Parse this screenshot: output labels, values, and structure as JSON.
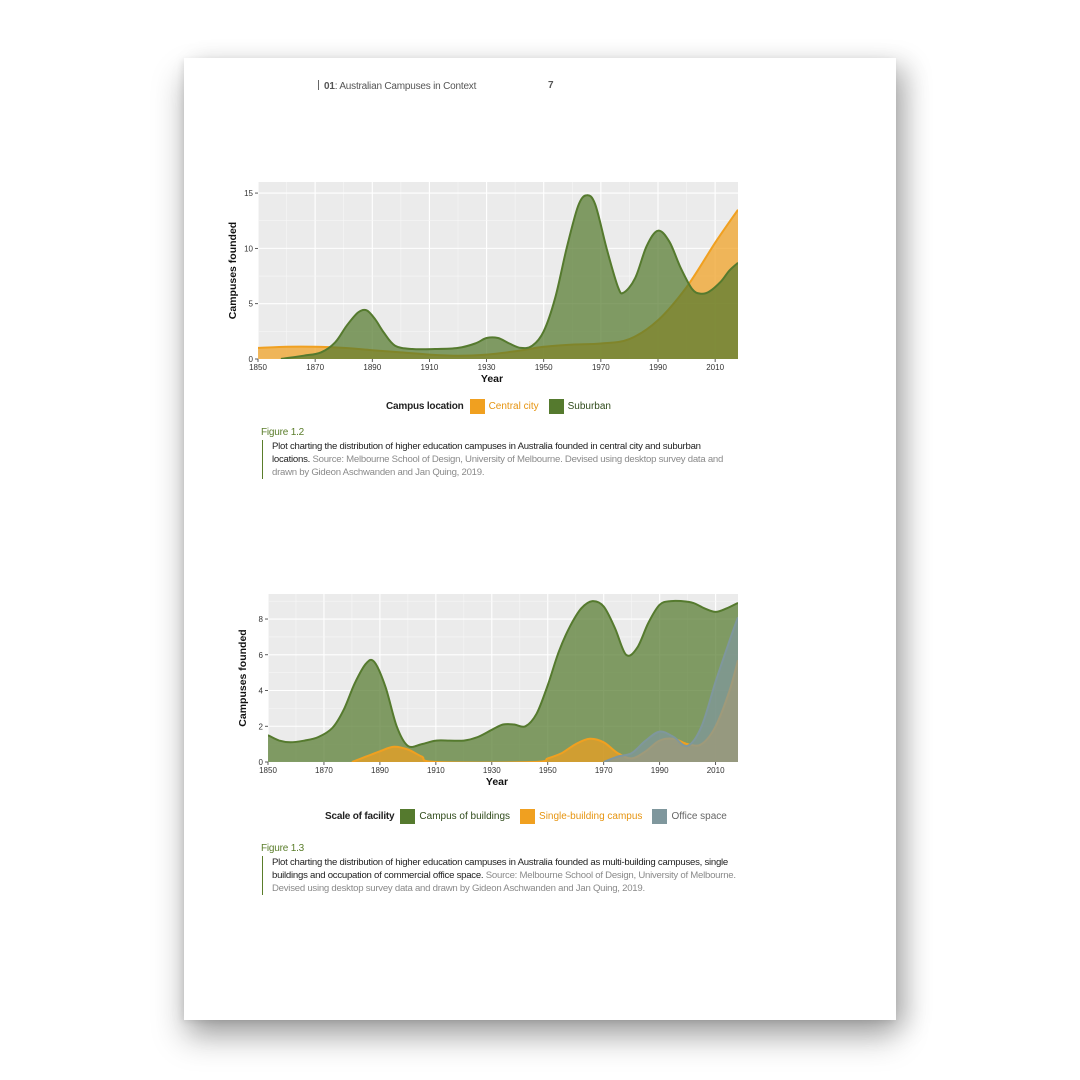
{
  "header": {
    "section_number": "01",
    "section_title": ": Australian Campuses in Context",
    "page_number": "7"
  },
  "figures": [
    {
      "label": "Figure 1.2",
      "caption": "Plot charting the distribution of higher education campuses in Australia founded in central city and suburban locations.",
      "source": "Source: Melbourne School of Design, University of Melbourne. Devised using desktop survey data and drawn by Gideon Aschwanden and Jan Quing, 2019.",
      "legend_title": "Campus location"
    },
    {
      "label": "Figure 1.3",
      "caption": "Plot charting the distribution of higher education campuses in Australia founded as multi-building campuses, single buildings and occupation of commercial office space.",
      "source": "Source: Melbourne School of Design, University of Melbourne. Devised using desktop survey data and drawn by Gideon Aschwanden and Jan Quing, 2019.",
      "legend_title": "Scale of facility"
    }
  ],
  "chart_data": [
    {
      "type": "area",
      "title": "",
      "xlabel": "Year",
      "ylabel": "Campuses founded",
      "xlim": [
        1850,
        2018
      ],
      "ylim": [
        0,
        16
      ],
      "xticks": [
        1850,
        1870,
        1890,
        1910,
        1930,
        1950,
        1970,
        1990,
        2010
      ],
      "yticks": [
        0,
        5,
        10,
        15
      ],
      "grid": true,
      "legend_position": "bottom",
      "series": [
        {
          "name": "Central city",
          "color": "#f0a020",
          "x": [
            1850,
            1860,
            1870,
            1880,
            1890,
            1900,
            1910,
            1920,
            1930,
            1940,
            1950,
            1960,
            1970,
            1980,
            1990,
            2000,
            2010,
            2018
          ],
          "y": [
            1.0,
            1.1,
            1.1,
            1.0,
            0.8,
            0.6,
            0.4,
            0.3,
            0.4,
            0.7,
            1.1,
            1.3,
            1.4,
            1.8,
            3.5,
            6.5,
            10.5,
            13.5
          ]
        },
        {
          "name": "Suburban",
          "color": "#557a2e",
          "x": [
            1858,
            1866,
            1872,
            1877,
            1881,
            1885,
            1888,
            1891,
            1894,
            1898,
            1904,
            1912,
            1920,
            1926,
            1930,
            1934,
            1938,
            1942,
            1946,
            1950,
            1954,
            1958,
            1962,
            1965,
            1968,
            1972,
            1976,
            1978,
            1982,
            1986,
            1990,
            1994,
            1998,
            2002,
            2005,
            2008,
            2012,
            2015,
            2018
          ],
          "y": [
            0.0,
            0.3,
            0.6,
            1.5,
            3.0,
            4.2,
            4.4,
            3.6,
            2.4,
            1.2,
            0.9,
            0.9,
            1.0,
            1.4,
            1.9,
            1.9,
            1.4,
            1.0,
            1.2,
            2.5,
            5.5,
            10.0,
            13.8,
            14.8,
            14.0,
            10.0,
            6.5,
            6.0,
            7.3,
            10.2,
            11.6,
            10.6,
            8.2,
            6.3,
            5.9,
            6.1,
            7.0,
            8.0,
            8.7
          ]
        }
      ]
    },
    {
      "type": "area",
      "title": "",
      "xlabel": "Year",
      "ylabel": "Campuses founded",
      "xlim": [
        1850,
        2018
      ],
      "ylim": [
        0,
        9.4
      ],
      "xticks": [
        1850,
        1870,
        1890,
        1910,
        1930,
        1950,
        1970,
        1990,
        2010
      ],
      "yticks": [
        0,
        2,
        4,
        6,
        8
      ],
      "grid": true,
      "legend_position": "bottom",
      "series": [
        {
          "name": "Campus of buildings",
          "color": "#557a2e",
          "x": [
            1850,
            1854,
            1858,
            1863,
            1868,
            1873,
            1877,
            1881,
            1885,
            1888,
            1892,
            1896,
            1900,
            1905,
            1910,
            1915,
            1920,
            1925,
            1930,
            1934,
            1938,
            1942,
            1946,
            1950,
            1954,
            1958,
            1962,
            1966,
            1970,
            1974,
            1978,
            1982,
            1986,
            1990,
            1994,
            1998,
            2002,
            2006,
            2010,
            2014,
            2018
          ],
          "y": [
            1.5,
            1.2,
            1.1,
            1.2,
            1.4,
            1.9,
            2.9,
            4.4,
            5.5,
            5.6,
            4.2,
            2.0,
            0.9,
            1.0,
            1.2,
            1.2,
            1.2,
            1.4,
            1.8,
            2.1,
            2.1,
            2.0,
            2.7,
            4.3,
            6.2,
            7.6,
            8.6,
            9.0,
            8.7,
            7.5,
            6.0,
            6.4,
            7.8,
            8.8,
            9.0,
            9.0,
            8.9,
            8.6,
            8.4,
            8.6,
            8.9
          ]
        },
        {
          "name": "Single-building campus",
          "color": "#f0a020",
          "x": [
            1880,
            1885,
            1890,
            1895,
            1900,
            1905,
            1910,
            1945,
            1950,
            1955,
            1960,
            1965,
            1970,
            1975,
            1980,
            1985,
            1990,
            1995,
            2000,
            2005,
            2010,
            2015,
            2018
          ],
          "y": [
            0.0,
            0.3,
            0.6,
            0.85,
            0.7,
            0.3,
            0.0,
            0.0,
            0.2,
            0.5,
            1.0,
            1.3,
            1.1,
            0.5,
            0.2,
            0.6,
            1.2,
            1.3,
            1.0,
            1.0,
            2.0,
            4.0,
            5.7
          ]
        },
        {
          "name": "Office space",
          "color": "#7f979d",
          "x": [
            1970,
            1975,
            1980,
            1985,
            1990,
            1995,
            2000,
            2005,
            2010,
            2015,
            2018
          ],
          "y": [
            0.0,
            0.3,
            0.5,
            1.2,
            1.7,
            1.4,
            0.9,
            2.0,
            4.5,
            6.8,
            8.1
          ]
        }
      ]
    }
  ]
}
